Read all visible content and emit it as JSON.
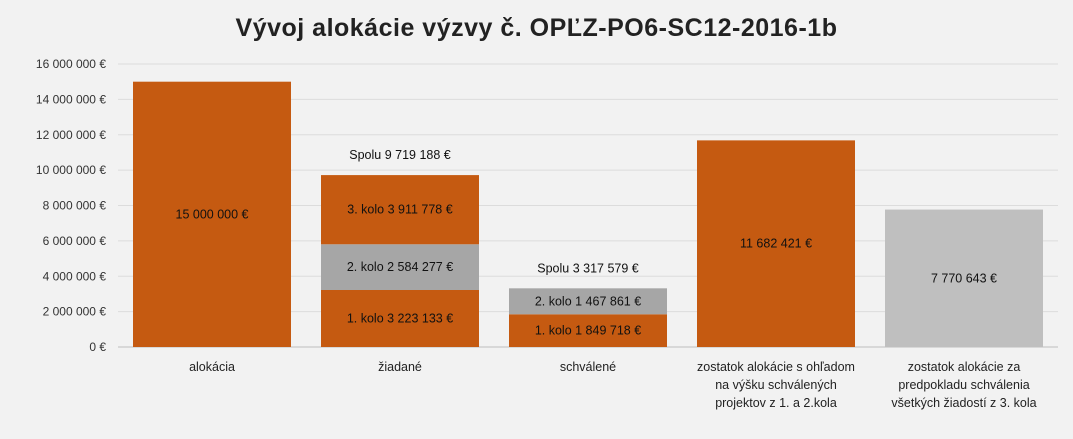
{
  "chart_data": {
    "type": "bar",
    "stacked": true,
    "title": "Vývoj alokácie výzvy č. OPĽZ-PO6-SC12-2016-1b",
    "xlabel": "",
    "ylabel": "",
    "ylim": [
      0,
      16000000
    ],
    "y_ticks": [
      "0 €",
      "2 000 000 €",
      "4 000 000 €",
      "6 000 000 €",
      "8 000 000 €",
      "10 000 000 €",
      "12 000 000 €",
      "14 000 000 €",
      "16 000 000 €"
    ],
    "y_tick_values": [
      0,
      2000000,
      4000000,
      6000000,
      8000000,
      10000000,
      12000000,
      14000000,
      16000000
    ],
    "grid": true,
    "colors": {
      "orange": "#c55a11",
      "gray": "#a6a6a6",
      "light_gray": "#bfbfbf"
    },
    "categories": [
      {
        "label_lines": [
          "alokácia"
        ],
        "total_label": "",
        "segments": [
          {
            "value": 15000000,
            "label": "15 000 000 €",
            "color": "orange"
          }
        ]
      },
      {
        "label_lines": [
          "žiadané"
        ],
        "total_label": "Spolu 9 719 188 €",
        "segments": [
          {
            "value": 3223133,
            "label": "1. kolo 3 223 133 €",
            "color": "orange"
          },
          {
            "value": 2584277,
            "label": "2. kolo 2 584 277 €",
            "color": "gray"
          },
          {
            "value": 3911778,
            "label": "3. kolo 3 911 778 €",
            "color": "orange"
          }
        ]
      },
      {
        "label_lines": [
          "schválené"
        ],
        "total_label": "Spolu 3 317 579 €",
        "segments": [
          {
            "value": 1849718,
            "label": "1. kolo 1 849 718 €",
            "color": "orange"
          },
          {
            "value": 1467861,
            "label": "2. kolo 1 467 861 €",
            "color": "gray"
          }
        ]
      },
      {
        "label_lines": [
          "zostatok alokácie s ohľadom",
          "na výšku schválených",
          "projektov z 1. a 2.kola"
        ],
        "total_label": "",
        "segments": [
          {
            "value": 11682421,
            "label": "11 682 421 €",
            "color": "orange"
          }
        ]
      },
      {
        "label_lines": [
          "zostatok alokácie za",
          "predpokladu schválenia",
          "všetkých žiadostí z 3. kola"
        ],
        "total_label": "",
        "segments": [
          {
            "value": 7770643,
            "label": "7 770 643 €",
            "color": "light_gray"
          }
        ]
      }
    ]
  }
}
